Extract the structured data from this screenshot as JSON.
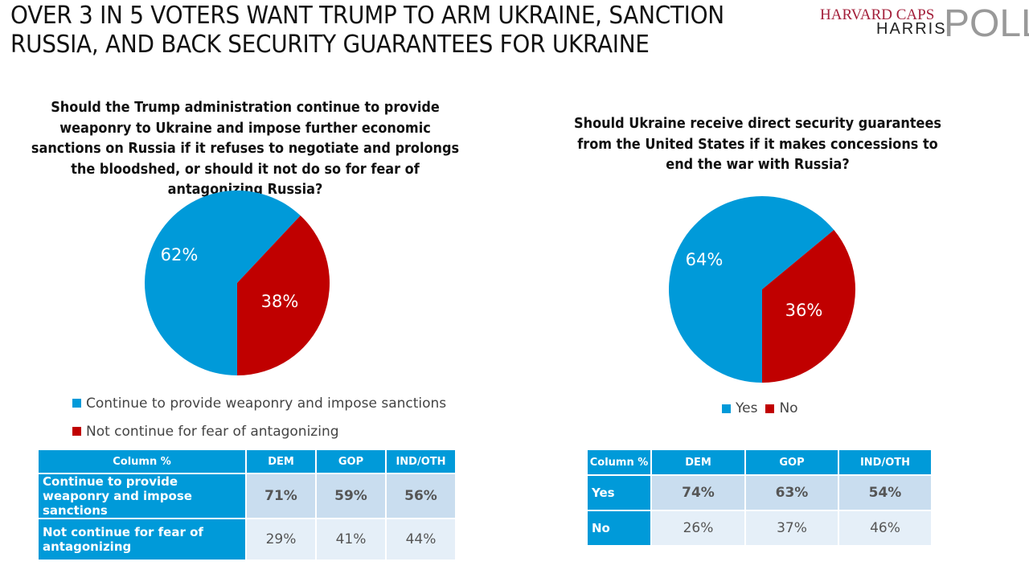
{
  "title": "OVER 3 IN 5 VOTERS WANT TRUMP TO ARM UKRAINE, SANCTION RUSSIA, AND BACK SECURITY GUARANTEES FOR UKRAINE",
  "logo": {
    "line1": "HARVARD CAPS",
    "line2": "HARRIS",
    "line3": "POLL"
  },
  "colors": {
    "blue": "#009ad9",
    "red": "#c00000"
  },
  "chart_data": [
    {
      "type": "pie",
      "title": "Should the Trump administration continue to provide weaponry to Ukraine and impose further economic sanctions on Russia if it refuses to negotiate and prolongs the bloodshed, or should it not do so for fear of antagonizing Russia?",
      "categories": [
        "Continue to provide weaponry and impose sanctions",
        "Not continue for fear of antagonizing"
      ],
      "values": [
        62,
        38
      ],
      "labels": [
        "62%",
        "38%"
      ],
      "colors": [
        "#009ad9",
        "#c00000"
      ],
      "legend_position": "bottom",
      "table": {
        "header": [
          "Column %",
          "DEM",
          "GOP",
          "IND/OTH"
        ],
        "rows": [
          {
            "label": "Continue to provide weaponry and impose sanctions",
            "values": [
              "71%",
              "59%",
              "56%"
            ]
          },
          {
            "label": "Not continue for fear of antagonizing",
            "values": [
              "29%",
              "41%",
              "44%"
            ]
          }
        ]
      }
    },
    {
      "type": "pie",
      "title": "Should Ukraine receive direct security guarantees from the United States if it makes concessions to end the war with Russia?",
      "categories": [
        "Yes",
        "No"
      ],
      "values": [
        64,
        36
      ],
      "labels": [
        "64%",
        "36%"
      ],
      "colors": [
        "#009ad9",
        "#c00000"
      ],
      "legend_position": "bottom",
      "table": {
        "header": [
          "Column %",
          "DEM",
          "GOP",
          "IND/OTH"
        ],
        "rows": [
          {
            "label": "Yes",
            "values": [
              "74%",
              "63%",
              "54%"
            ]
          },
          {
            "label": "No",
            "values": [
              "26%",
              "37%",
              "46%"
            ]
          }
        ]
      }
    }
  ]
}
